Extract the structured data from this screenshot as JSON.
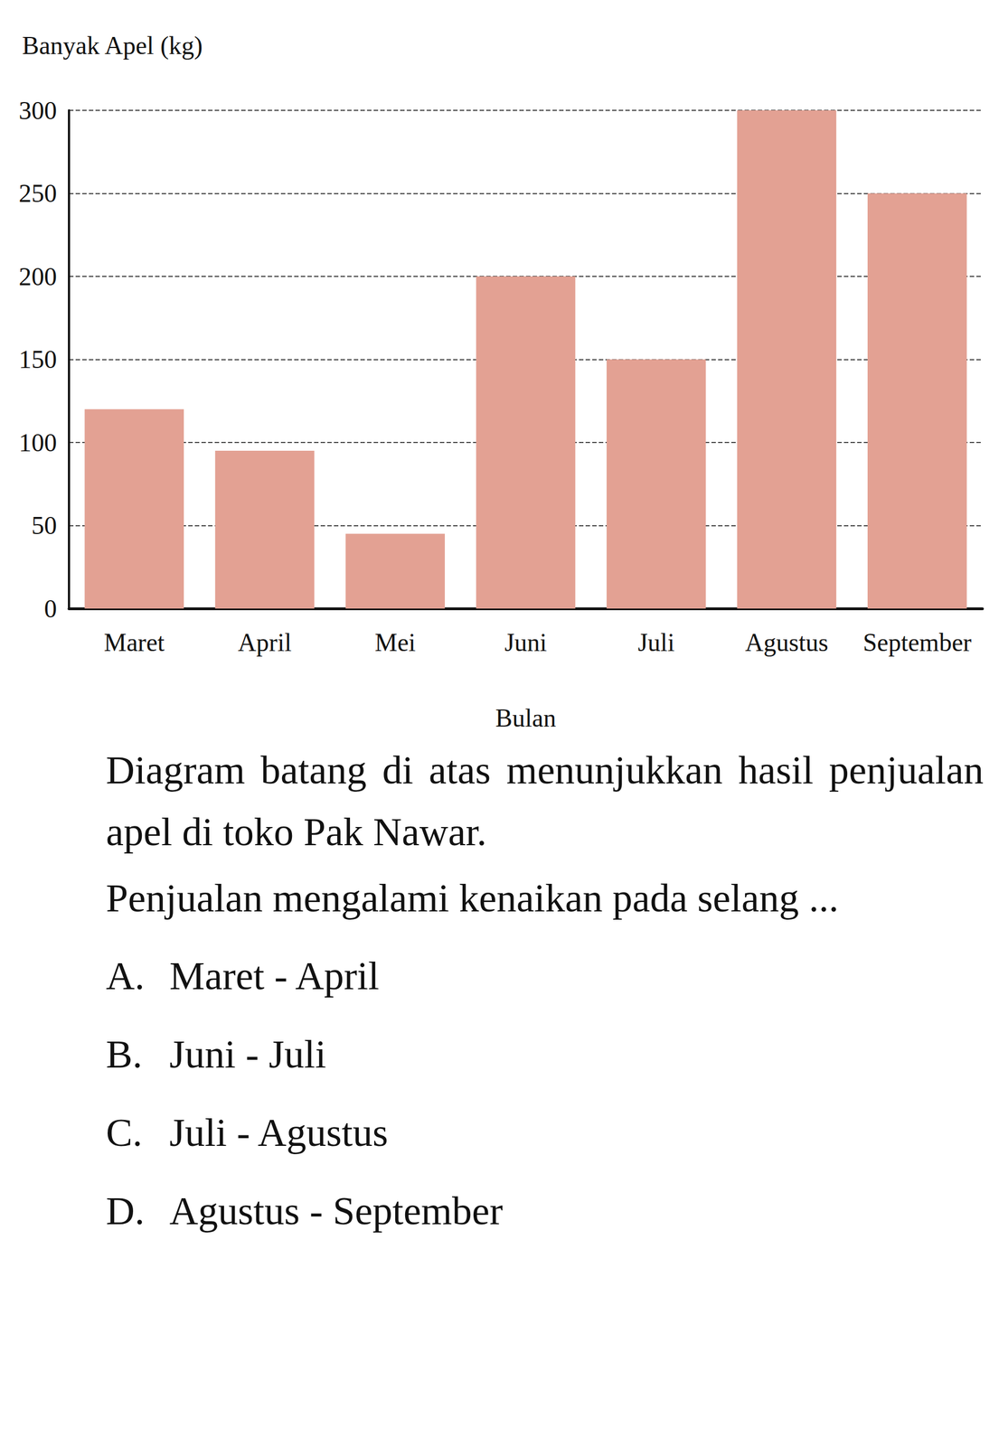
{
  "chart_data": {
    "type": "bar",
    "categories": [
      "Maret",
      "April",
      "Mei",
      "Juni",
      "Juli",
      "Agustus",
      "September"
    ],
    "values": [
      120,
      95,
      45,
      200,
      150,
      300,
      250
    ],
    "color": "#e3a193",
    "xlabel": "Bulan",
    "ylabel": "Banyak Apel (kg)",
    "ylim": [
      0,
      300
    ],
    "yticks": [
      0,
      50,
      100,
      150,
      200,
      250,
      300
    ],
    "grid": true
  },
  "question": {
    "text": [
      "Diagram batang di atas menunjukkan hasil penjualan apel di toko Pak Nawar.",
      "Penjualan mengalami kenaikan pada selang ..."
    ],
    "options": [
      {
        "letter": "A.",
        "text": "Maret - April"
      },
      {
        "letter": "B.",
        "text": "Juni - Juli"
      },
      {
        "letter": "C.",
        "text": "Juli - Agustus"
      },
      {
        "letter": "D.",
        "text": "Agustus - September"
      }
    ]
  }
}
